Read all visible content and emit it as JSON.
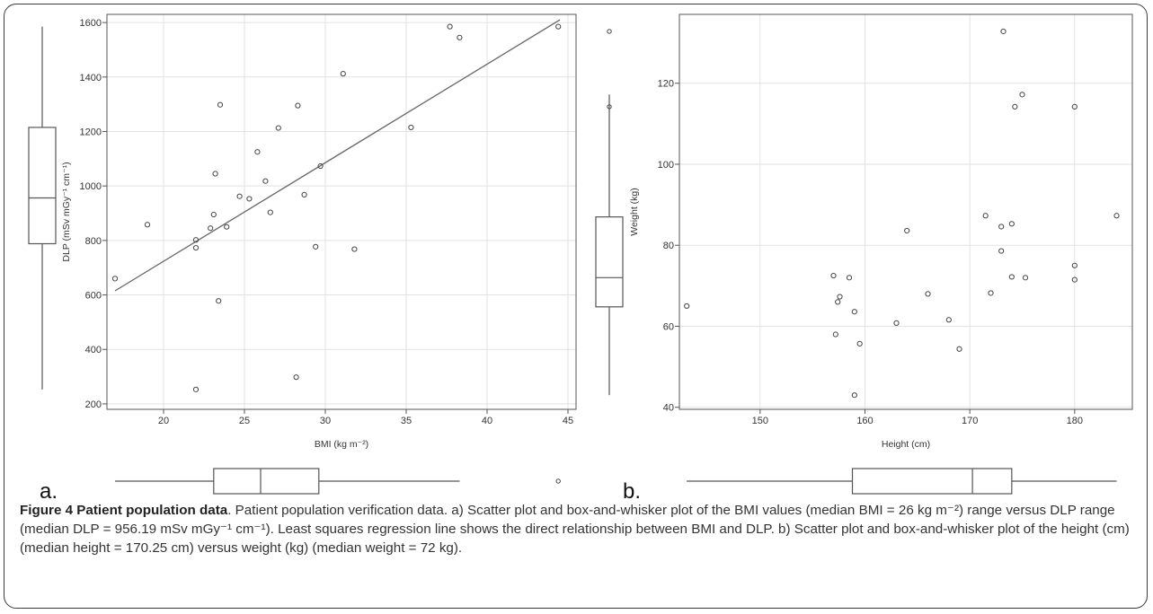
{
  "chart_data": [
    {
      "type": "scatter",
      "panel_label": "a.",
      "xlabel": "BMI (kg m⁻²)",
      "ylabel": "DLP (mSv mGy⁻¹ cm⁻¹)",
      "xlim": [
        16.5,
        45.5
      ],
      "ylim": [
        180,
        1630
      ],
      "x_ticks": [
        20,
        25,
        30,
        35,
        40,
        45
      ],
      "y_ticks": [
        200,
        400,
        600,
        800,
        1000,
        1200,
        1400,
        1600
      ],
      "grid": true,
      "regression_line": [
        [
          17,
          615
        ],
        [
          44.5,
          1610
        ]
      ],
      "points": [
        [
          17,
          660
        ],
        [
          19,
          858
        ],
        [
          22,
          802
        ],
        [
          22,
          773
        ],
        [
          22,
          253
        ],
        [
          22.9,
          845
        ],
        [
          23.1,
          895
        ],
        [
          23.2,
          1045
        ],
        [
          23.4,
          578
        ],
        [
          23.5,
          1298
        ],
        [
          23.9,
          850
        ],
        [
          24.7,
          962
        ],
        [
          25.3,
          953
        ],
        [
          25.8,
          1125
        ],
        [
          26.3,
          1018
        ],
        [
          26.6,
          903
        ],
        [
          27.1,
          1213
        ],
        [
          28.2,
          298
        ],
        [
          28.3,
          1295
        ],
        [
          28.7,
          968
        ],
        [
          29.4,
          777
        ],
        [
          29.7,
          1073
        ],
        [
          31.1,
          1412
        ],
        [
          31.8,
          768
        ],
        [
          35.3,
          1215
        ],
        [
          37.7,
          1585
        ],
        [
          38.3,
          1545
        ],
        [
          44.4,
          1585
        ]
      ],
      "x_box": {
        "whisker_low": 17,
        "q1": 23.1,
        "median": 26,
        "q3": 29.6,
        "whisker_high": 38.3,
        "outliers": [
          44.4
        ]
      },
      "y_box": {
        "whisker_low": 253,
        "q1": 788,
        "median": 956.19,
        "q3": 1215,
        "whisker_high": 1585,
        "outliers": []
      }
    },
    {
      "type": "scatter",
      "panel_label": "b.",
      "xlabel": "Height (cm)",
      "ylabel": "Weight (kg)",
      "xlim": [
        142.3,
        185.5
      ],
      "ylim": [
        39.5,
        137
      ],
      "x_ticks": [
        150,
        160,
        170,
        180
      ],
      "y_ticks": [
        40,
        60,
        80,
        100,
        120
      ],
      "grid": true,
      "points": [
        [
          143,
          65
        ],
        [
          157,
          72.5
        ],
        [
          157.2,
          58
        ],
        [
          157.4,
          66
        ],
        [
          157.6,
          67.3
        ],
        [
          158.5,
          72
        ],
        [
          159,
          63.6
        ],
        [
          159,
          43
        ],
        [
          159.5,
          55.7
        ],
        [
          163,
          60.8
        ],
        [
          164,
          83.6
        ],
        [
          166,
          68
        ],
        [
          168,
          61.6
        ],
        [
          169,
          54.4
        ],
        [
          171.5,
          87.3
        ],
        [
          172,
          68.2
        ],
        [
          173,
          84.6
        ],
        [
          173,
          78.6
        ],
        [
          173.2,
          132.8
        ],
        [
          174,
          85.3
        ],
        [
          174,
          72.2
        ],
        [
          174.3,
          114.2
        ],
        [
          175,
          117.2
        ],
        [
          175.3,
          72
        ],
        [
          180,
          114.2
        ],
        [
          180,
          75
        ],
        [
          180,
          71.5
        ],
        [
          184,
          87.3
        ]
      ],
      "x_box": {
        "whisker_low": 143,
        "q1": 158.8,
        "median": 170.25,
        "q3": 174,
        "whisker_high": 184,
        "outliers": []
      },
      "y_box": {
        "whisker_low": 43,
        "q1": 64.8,
        "median": 72,
        "q3": 87,
        "whisker_high": 117.2,
        "outliers": [
          132.8,
          114.2
        ]
      }
    }
  ],
  "caption": {
    "title": "Figure 4 Patient population data",
    "text": ". Patient population verification data. a) Scatter plot and box-and-whisker plot of the BMI values (median BMI = 26 kg m⁻²) range versus DLP range (median DLP = 956.19 mSv mGy⁻¹ cm⁻¹). Least squares regression line shows the direct relationship between BMI and DLP. b) Scatter plot and box-and-whisker plot of the height (cm) (median height = 170.25 cm) versus weight (kg) (median weight = 72 kg)."
  }
}
